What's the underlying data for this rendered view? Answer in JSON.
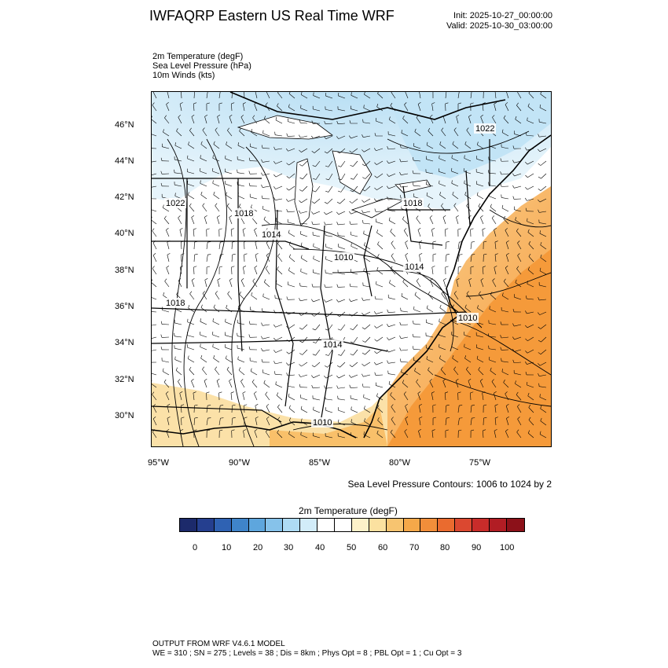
{
  "title": "IWFAQRP Eastern US Real Time WRF",
  "init": "Init: 2025-10-27_00:00:00",
  "valid": "Valid: 2025-10-30_03:00:00",
  "fields": [
    "2m Temperature   (degF)",
    "Sea Level Pressure   (hPa)",
    "10m Winds   (kts)"
  ],
  "map": {
    "lat_labels": [
      "46°N",
      "44°N",
      "42°N",
      "40°N",
      "38°N",
      "36°N",
      "34°N",
      "32°N",
      "30°N"
    ],
    "lon_labels": [
      "95°W",
      "90°W",
      "85°W",
      "80°W",
      "75°W"
    ],
    "pressure_labels": [
      "1022",
      "1022",
      "1018",
      "1018",
      "1014",
      "1010",
      "1014",
      "1018",
      "1010",
      "1014",
      "1010"
    ],
    "colors": {
      "cold": "#c7e6f7",
      "mild": "#ffffff",
      "warm": "#f9c15e",
      "hot": "#f59a3a",
      "coast": "#000000"
    }
  },
  "contour_note": "Sea Level Pressure Contours: 1006 to 1024 by 2",
  "colorbar": {
    "title": "2m Temperature  (degF)",
    "colors": [
      "#1c2a6b",
      "#253f8f",
      "#2f62b3",
      "#3f84c9",
      "#5ea6dd",
      "#86c2ea",
      "#aedbf4",
      "#d2ecf9",
      "#ffffff",
      "#ffffff",
      "#fdf1c9",
      "#fbe1a0",
      "#f7c470",
      "#f5a849",
      "#f28e3a",
      "#ea6b2f",
      "#db4830",
      "#c92c2a",
      "#b11d24",
      "#8c1119"
    ],
    "labels": [
      "0",
      "10",
      "20",
      "30",
      "40",
      "50",
      "60",
      "70",
      "80",
      "90",
      "100"
    ]
  },
  "footer": [
    "OUTPUT FROM WRF V4.6.1 MODEL",
    "WE = 310 ; SN = 275 ; Levels = 38 ; Dis = 8km ; Phys Opt = 8 ; PBL Opt = 1 ; Cu Opt = 3"
  ]
}
